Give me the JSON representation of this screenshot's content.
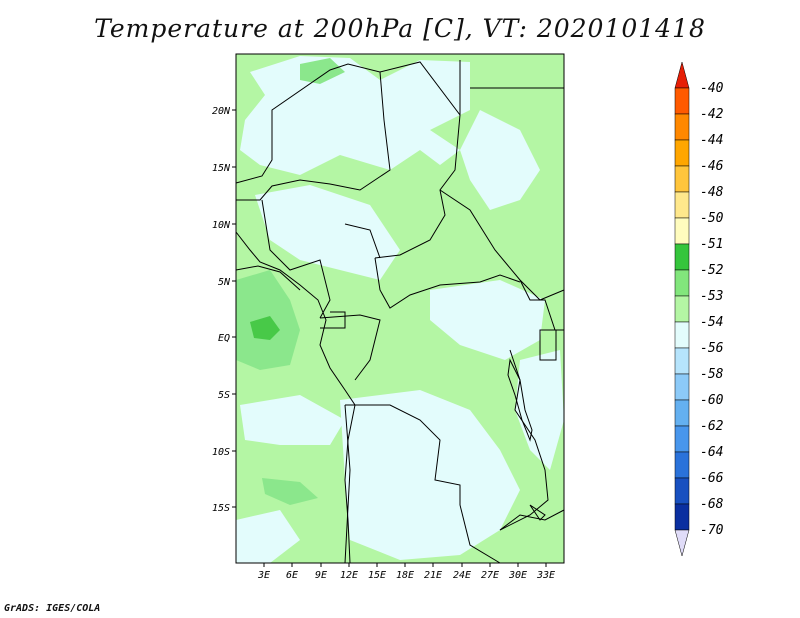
{
  "title": "Temperature at 200hPa [C], VT: 2020101418",
  "footer": "GrADS: IGES/COLA",
  "map": {
    "lat_labels": [
      "20N",
      "15N",
      "10N",
      "5N",
      "EQ",
      "5S",
      "10S",
      "15S"
    ],
    "lon_labels": [
      "3E",
      "6E",
      "9E",
      "12E",
      "15E",
      "18E",
      "21E",
      "24E",
      "27E",
      "30E",
      "33E"
    ],
    "colors": {
      "land_light": "#e3fcfc",
      "land_green": "#b4f6a4",
      "mid_green": "#8be78c",
      "dark_green": "#48c948",
      "border": "#000000"
    }
  },
  "colorbar": {
    "labels": [
      "-40",
      "-42",
      "-44",
      "-46",
      "-48",
      "-50",
      "-51",
      "-52",
      "-53",
      "-54",
      "-56",
      "-58",
      "-60",
      "-62",
      "-64",
      "-66",
      "-68",
      "-70"
    ],
    "colors": [
      "#ff1800",
      "#ff5a00",
      "#ff8800",
      "#ffa600",
      "#ffc53c",
      "#ffe88c",
      "#fffcbe",
      "#35c53c",
      "#82e67c",
      "#b4f6a4",
      "#e3fcfc",
      "#b6e4fc",
      "#8ccaf8",
      "#64b0f0",
      "#4896ec",
      "#2a72da",
      "#1850c0",
      "#0a2fa0",
      "#06186e"
    ],
    "top_arrow_color": "#e61e06",
    "bottom_arrow_color": "#e0dcf8"
  }
}
